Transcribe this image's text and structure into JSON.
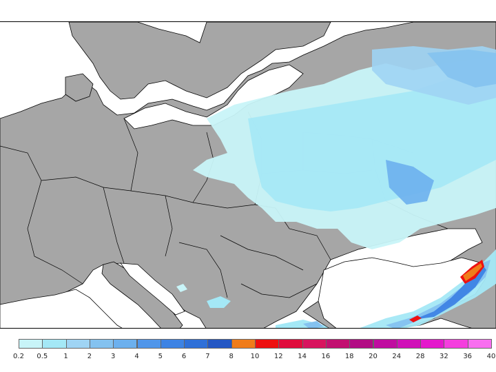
{
  "colors": {
    "land": "#a6a6a6",
    "sea": "#ffffff",
    "border": "#000000"
  },
  "legend": {
    "labels": [
      "0.2",
      "0.5",
      "1",
      "2",
      "3",
      "4",
      "5",
      "6",
      "7",
      "8",
      "10",
      "12",
      "14",
      "16",
      "18",
      "20",
      "24",
      "28",
      "32",
      "36",
      "40"
    ],
    "swatches": [
      "#c8f4f8",
      "#a4e8f6",
      "#9fd4f4",
      "#84c2f0",
      "#6cb0ee",
      "#5096ea",
      "#3d83e4",
      "#2f70d8",
      "#2457c4",
      "#f07c1a",
      "#ee1010",
      "#e00c3c",
      "#d8145e",
      "#c21070",
      "#b20c84",
      "#c00ca0",
      "#d010b8",
      "#e418cc",
      "#f43ede",
      "#f86ef0"
    ]
  }
}
